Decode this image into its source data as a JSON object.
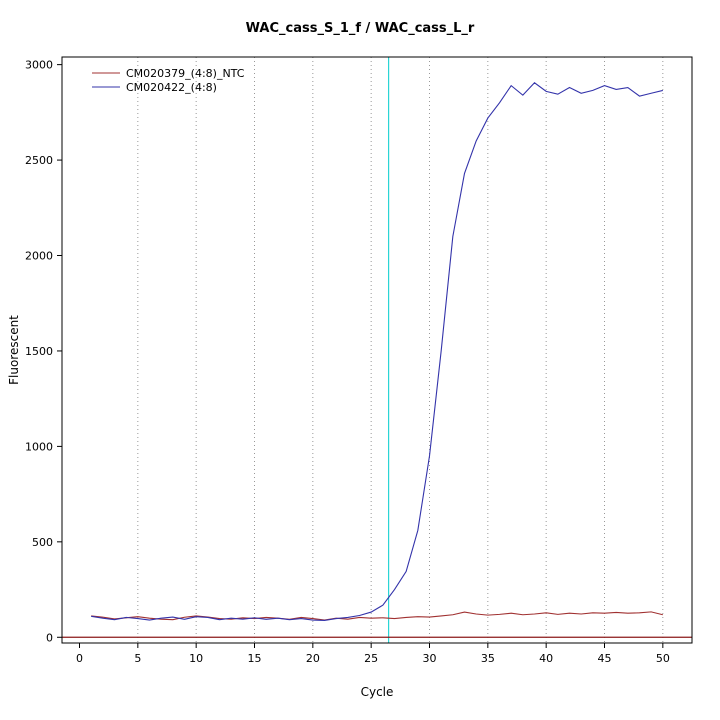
{
  "chart_data": {
    "type": "line",
    "title": "WAC_cass_S_1_f / WAC_cass_L_r",
    "xlabel": "Cycle",
    "ylabel": "Fluorescent",
    "xticks": [
      0,
      5,
      10,
      15,
      20,
      25,
      30,
      35,
      40,
      45,
      50
    ],
    "yticks": [
      0,
      500,
      1000,
      1500,
      2000,
      2500,
      3000
    ],
    "xlim": [
      -1.5,
      52.5
    ],
    "ylim": [
      -30,
      3040
    ],
    "grid": {
      "vertical_dotted_at": [
        5,
        10,
        15,
        20,
        25,
        30,
        35,
        40,
        45,
        50
      ],
      "color": "#999999"
    },
    "threshold_line": {
      "y": 0,
      "color": "#8b1a1a"
    },
    "ct_line": {
      "x": 26.5,
      "color": "#00cdcd"
    },
    "legend_position": "top-left-inside",
    "x": [
      1,
      2,
      3,
      4,
      5,
      6,
      7,
      8,
      9,
      10,
      11,
      12,
      13,
      14,
      15,
      16,
      17,
      18,
      19,
      20,
      21,
      22,
      23,
      24,
      25,
      26,
      27,
      28,
      29,
      30,
      31,
      32,
      33,
      34,
      35,
      36,
      37,
      38,
      39,
      40,
      41,
      42,
      43,
      44,
      45,
      46,
      47,
      48,
      49,
      50
    ],
    "series": [
      {
        "name": "CM020379_(4:8)_NTC",
        "color": "#a03030",
        "values": [
          112,
          105,
          96,
          102,
          108,
          100,
          95,
          92,
          105,
          112,
          106,
          98,
          95,
          102,
          98,
          104,
          100,
          94,
          104,
          98,
          90,
          100,
          95,
          104,
          100,
          102,
          98,
          104,
          108,
          106,
          112,
          118,
          132,
          122,
          116,
          120,
          126,
          118,
          122,
          128,
          120,
          126,
          122,
          128,
          126,
          130,
          126,
          128,
          133,
          118
        ]
      },
      {
        "name": "CM020422_(4:8)",
        "color": "#3333aa",
        "values": [
          110,
          100,
          92,
          104,
          98,
          90,
          100,
          106,
          94,
          108,
          104,
          92,
          100,
          95,
          102,
          94,
          100,
          92,
          98,
          90,
          88,
          98,
          104,
          114,
          132,
          168,
          250,
          345,
          560,
          950,
          1500,
          2100,
          2430,
          2600,
          2720,
          2800,
          2890,
          2840,
          2905,
          2860,
          2845,
          2880,
          2850,
          2865,
          2890,
          2870,
          2880,
          2835,
          2850,
          2865
        ]
      }
    ]
  }
}
